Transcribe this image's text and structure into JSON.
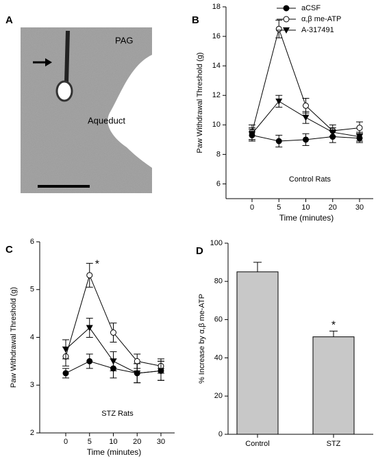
{
  "panel_a": {
    "label": "A",
    "region_labels": [
      "PAG",
      "Aqueduct"
    ]
  },
  "chart_data": [
    {
      "type": "line",
      "label": "B",
      "annotation": "Control Rats",
      "star": "*",
      "ylabel": "Paw Withdrawal Threshold (g)",
      "xlabel": "Time (minutes)",
      "categories": [
        "0",
        "5",
        "10",
        "20",
        "30"
      ],
      "ylim": [
        5,
        18
      ],
      "yticks": [
        6,
        8,
        10,
        12,
        14,
        16,
        18
      ],
      "legend": "top",
      "series": [
        {
          "name": "aCSF",
          "color": "#000000",
          "marker": "filled-circle",
          "values": [
            9.3,
            8.9,
            9.0,
            9.2,
            9.1
          ],
          "errors": [
            0.4,
            0.4,
            0.4,
            0.4,
            0.3
          ]
        },
        {
          "name": "α,β me-ATP",
          "color": "#000000",
          "marker": "open-circle",
          "values": [
            9.5,
            16.5,
            11.3,
            9.6,
            9.8
          ],
          "errors": [
            0.5,
            0.6,
            0.5,
            0.4,
            0.4
          ]
        },
        {
          "name": "A-317491",
          "color": "#000000",
          "marker": "triangle-down",
          "values": [
            9.4,
            11.6,
            10.5,
            9.5,
            9.2
          ],
          "errors": [
            0.4,
            0.4,
            0.4,
            0.3,
            0.3
          ]
        }
      ]
    },
    {
      "type": "line",
      "label": "C",
      "annotation": "STZ Rats",
      "star": "*",
      "ylabel": "Paw Withdrawal Threshold (g)",
      "xlabel": "Time (minutes)",
      "categories": [
        "0",
        "5",
        "10",
        "20",
        "30"
      ],
      "ylim": [
        2,
        6
      ],
      "yticks": [
        2,
        3,
        4,
        5,
        6
      ],
      "series": [
        {
          "name": "aCSF",
          "color": "#000000",
          "marker": "filled-circle",
          "values": [
            3.25,
            3.5,
            3.35,
            3.25,
            3.3
          ],
          "errors": [
            0.1,
            0.15,
            0.2,
            0.2,
            0.2
          ]
        },
        {
          "name": "α,β me-ATP",
          "color": "#000000",
          "marker": "open-circle",
          "values": [
            3.6,
            5.3,
            4.1,
            3.5,
            3.4
          ],
          "errors": [
            0.2,
            0.25,
            0.2,
            0.15,
            0.15
          ]
        },
        {
          "name": "A-317491",
          "color": "#000000",
          "marker": "triangle-down",
          "values": [
            3.75,
            4.2,
            3.5,
            3.25,
            3.3
          ],
          "errors": [
            0.2,
            0.2,
            0.2,
            0.2,
            0.2
          ]
        }
      ]
    },
    {
      "type": "bar",
      "label": "D",
      "star": "*",
      "ylabel": "% Increase by α,β me-ATP",
      "categories": [
        "Control",
        "STZ"
      ],
      "values": [
        85,
        51
      ],
      "errors": [
        5,
        3
      ],
      "color": "#c8c8c8",
      "ylim": [
        0,
        100
      ],
      "yticks": [
        0,
        20,
        40,
        60,
        80,
        100
      ]
    }
  ]
}
